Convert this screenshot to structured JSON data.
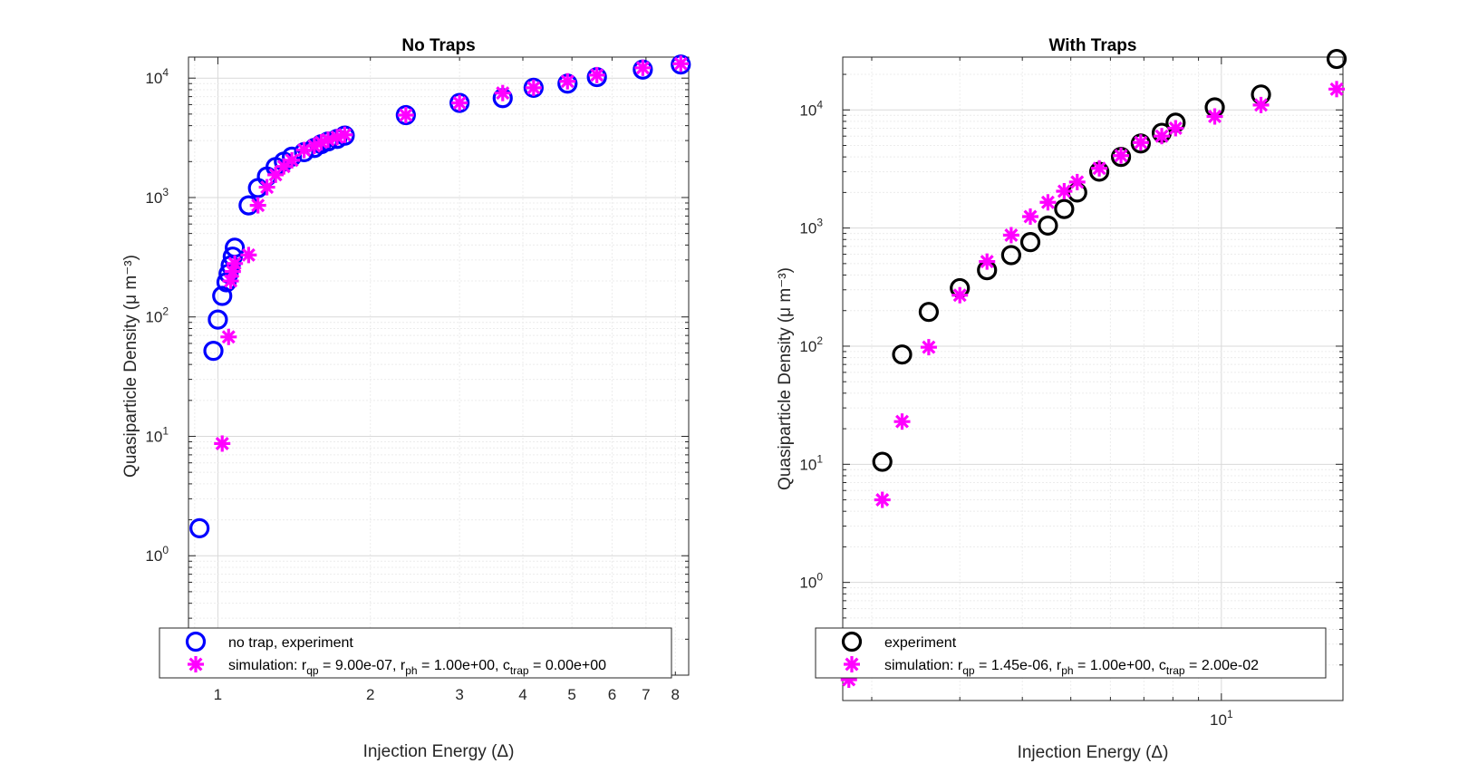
{
  "colors": {
    "no_trap_experiment": "#0000ff",
    "with_trap_experiment": "#000000",
    "simulation": "#ff00ff",
    "grid_major": "#d9d9d9",
    "grid_minor": "#ececec",
    "axis": "#262626"
  },
  "chart_data": [
    {
      "type": "scatter",
      "title": "No Traps",
      "xlabel": "Injection Energy (Δ)",
      "ylabel": "Quasiparticle Density (μ m⁻³)",
      "xscale": "log",
      "yscale": "log",
      "xlim": [
        0.875,
        8.5
      ],
      "ylim": [
        0.1,
        15000
      ],
      "grid": true,
      "legend_placement": "bottom",
      "xticks": [
        {
          "value": 1,
          "label": "1"
        },
        {
          "value": 2,
          "label": "2"
        },
        {
          "value": 3,
          "label": "3"
        },
        {
          "value": 4,
          "label": "4"
        },
        {
          "value": 5,
          "label": "5"
        },
        {
          "value": 6,
          "label": "6"
        },
        {
          "value": 7,
          "label": "7"
        },
        {
          "value": 8,
          "label": "8"
        }
      ],
      "yticks": [
        {
          "value": 1,
          "base": "10",
          "exp": "0"
        },
        {
          "value": 10,
          "base": "10",
          "exp": "1"
        },
        {
          "value": 100,
          "base": "10",
          "exp": "2"
        },
        {
          "value": 1000,
          "base": "10",
          "exp": "3"
        },
        {
          "value": 10000,
          "base": "10",
          "exp": "4"
        }
      ],
      "series": [
        {
          "name": "no trap, experiment",
          "marker": "circle",
          "color": "#0000ff",
          "x": [
            0.92,
            0.98,
            1.0,
            1.02,
            1.04,
            1.05,
            1.06,
            1.07,
            1.08,
            1.15,
            1.2,
            1.25,
            1.3,
            1.35,
            1.4,
            1.48,
            1.55,
            1.6,
            1.65,
            1.72,
            1.78,
            2.35,
            3.0,
            3.65,
            4.2,
            4.9,
            5.6,
            6.9,
            8.2
          ],
          "y": [
            1.7,
            52,
            95,
            150,
            195,
            230,
            270,
            320,
            380,
            860,
            1200,
            1500,
            1800,
            2000,
            2200,
            2400,
            2600,
            2800,
            2950,
            3100,
            3300,
            4900,
            6200,
            6800,
            8300,
            9000,
            10200,
            11800,
            13000
          ]
        },
        {
          "name": "simulation: r_qp = 9.00e-07, r_ph = 1.00e+00, c_trap = 0.00e+00",
          "name_parts": {
            "prefix": "simulation: r",
            "sub1": "qp",
            "mid1": " = 9.00e-07, r",
            "sub2": "ph",
            "mid2": " = 1.00e+00, c",
            "sub3": "trap",
            "suffix": " = 0.00e+00"
          },
          "marker": "asterisk",
          "color": "#ff00ff",
          "x": [
            1.0,
            1.02,
            1.05,
            1.06,
            1.07,
            1.08,
            1.15,
            1.2,
            1.25,
            1.3,
            1.35,
            1.4,
            1.48,
            1.55,
            1.6,
            1.65,
            1.72,
            1.78,
            2.35,
            3.0,
            3.65,
            4.2,
            4.9,
            5.6,
            6.9,
            8.2
          ],
          "y": [
            0.13,
            8.7,
            68,
            200,
            240,
            280,
            330,
            860,
            1220,
            1550,
            1820,
            2050,
            2500,
            2700,
            2900,
            3050,
            3200,
            3350,
            4900,
            6200,
            7500,
            8300,
            9400,
            10600,
            12200,
            13200
          ]
        }
      ]
    },
    {
      "type": "scatter",
      "title": "With Traps",
      "xlabel": "Injection Energy (Δ)",
      "ylabel": "Quasiparticle Density (μ m⁻³)",
      "xscale": "log",
      "yscale": "log",
      "xlim": [
        1.75,
        17.5
      ],
      "ylim": [
        0.1,
        28000
      ],
      "grid": true,
      "legend_placement": "bottom",
      "xticks": [
        {
          "value": 10,
          "base": "10",
          "exp": "1"
        }
      ],
      "yticks": [
        {
          "value": 1,
          "base": "10",
          "exp": "0"
        },
        {
          "value": 10,
          "base": "10",
          "exp": "1"
        },
        {
          "value": 100,
          "base": "10",
          "exp": "2"
        },
        {
          "value": 1000,
          "base": "10",
          "exp": "3"
        },
        {
          "value": 10000,
          "base": "10",
          "exp": "4"
        }
      ],
      "series": [
        {
          "name": "experiment",
          "marker": "circle",
          "color": "#000000",
          "x": [
            2.1,
            2.3,
            2.6,
            3.0,
            3.4,
            3.8,
            4.15,
            4.5,
            4.85,
            5.15,
            5.7,
            6.3,
            6.9,
            7.6,
            8.1,
            9.7,
            12.0,
            17.0
          ],
          "y": [
            10.5,
            85,
            195,
            310,
            440,
            590,
            760,
            1050,
            1450,
            2000,
            3000,
            4000,
            5200,
            6400,
            7800,
            10500,
            13500,
            27000
          ]
        },
        {
          "name": "simulation: r_qp = 1.45e-06, r_ph = 1.00e+00, c_trap = 2.00e-02",
          "name_parts": {
            "prefix": "simulation: r",
            "sub1": "qp",
            "mid1": " = 1.45e-06, r",
            "sub2": "ph",
            "mid2": " = 1.00e+00, c",
            "sub3": "trap",
            "suffix": " = 2.00e-02"
          },
          "marker": "asterisk",
          "color": "#ff00ff",
          "x": [
            1.8,
            2.1,
            2.3,
            2.6,
            3.0,
            3.4,
            3.8,
            4.15,
            4.5,
            4.85,
            5.15,
            5.7,
            6.3,
            6.9,
            7.6,
            8.1,
            9.7,
            12.0,
            17.0
          ],
          "y": [
            0.15,
            5,
            23,
            98,
            270,
            520,
            870,
            1250,
            1650,
            2050,
            2450,
            3200,
            4100,
            5300,
            6000,
            7000,
            8800,
            11000,
            15000
          ]
        }
      ]
    }
  ]
}
